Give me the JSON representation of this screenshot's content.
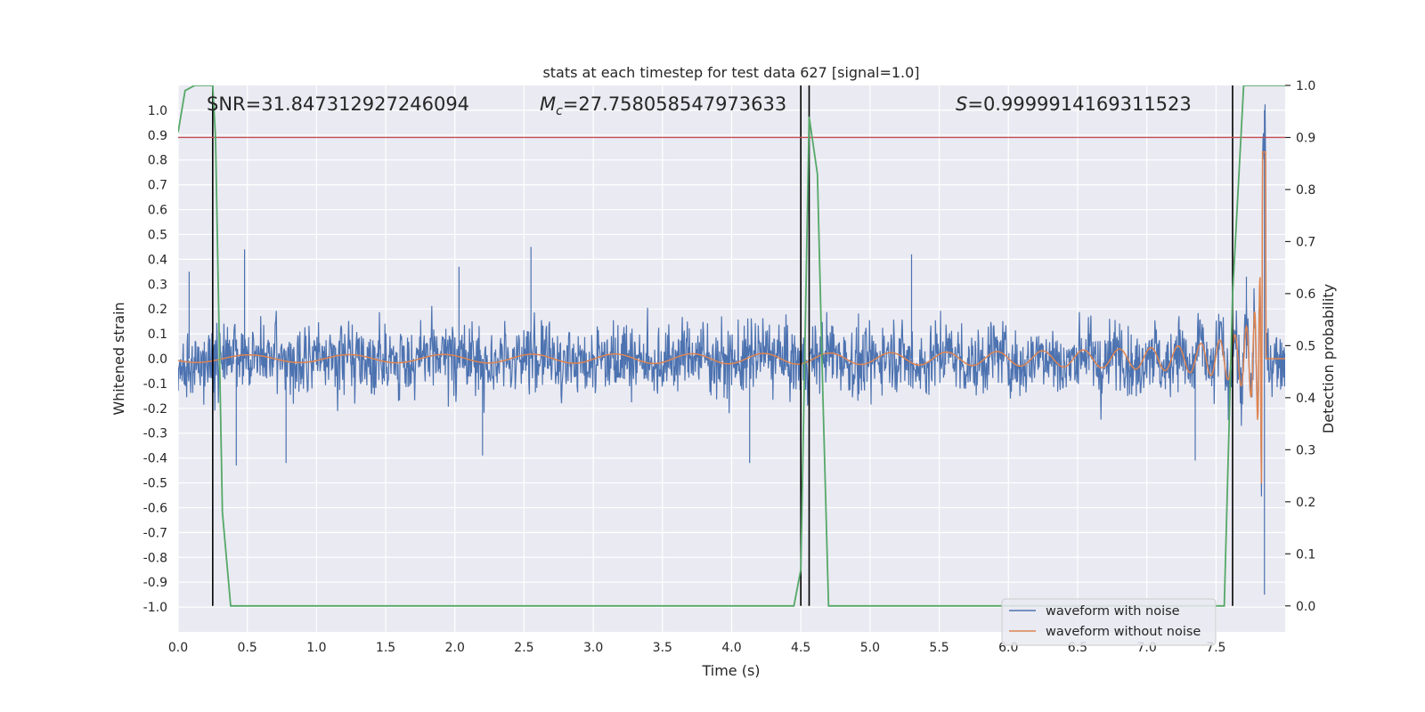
{
  "chart_data": {
    "type": "line",
    "title": "stats at each timestep for test data 627 [signal=1.0]",
    "xlabel": "Time (s)",
    "ylabel": "Whitened strain",
    "y2label": "Detection probability",
    "xlim": [
      0.0,
      8.0
    ],
    "ylim": [
      -1.1,
      1.1
    ],
    "y2lim": [
      -0.05,
      1.0
    ],
    "xticks": [
      "0.0",
      "0.5",
      "1.0",
      "1.5",
      "2.0",
      "2.5",
      "3.0",
      "3.5",
      "4.0",
      "4.5",
      "5.0",
      "5.5",
      "6.0",
      "6.5",
      "7.0",
      "7.5"
    ],
    "yticks": [
      "1.0",
      "0.9",
      "0.8",
      "0.7",
      "0.6",
      "0.5",
      "0.4",
      "0.3",
      "0.2",
      "0.1",
      "0.0",
      "-0.1",
      "-0.2",
      "-0.3",
      "-0.4",
      "-0.5",
      "-0.6",
      "-0.7",
      "-0.8",
      "-0.9",
      "-1.0"
    ],
    "y2ticks": [
      "1.0",
      "0.9",
      "0.8",
      "0.7",
      "0.6",
      "0.5",
      "0.4",
      "0.3",
      "0.2",
      "0.1",
      "0.0"
    ],
    "grid": true,
    "legend_position": "bottom-right",
    "annotations": {
      "snr": "SNR=31.847312927246094",
      "mc": "=27.758058547973633",
      "mc_symbol": "M",
      "mc_sub": "c",
      "s": "=0.9999914169311523",
      "s_symbol": "S"
    },
    "threshold": {
      "value": 0.9,
      "axis": "y2",
      "color": "#c44e52"
    },
    "vlines": [
      0.25,
      4.5,
      4.56,
      7.62
    ],
    "series": [
      {
        "name": "waveform with noise",
        "axis": "y",
        "color": "#4c72b0",
        "description_values": {
          "noise_amplitude_std": 0.1,
          "spikes": [
            {
              "x": 0.08,
              "y": 0.35
            },
            {
              "x": 0.48,
              "y": 0.44
            },
            {
              "x": 0.42,
              "y": -0.43
            },
            {
              "x": 0.78,
              "y": -0.42
            },
            {
              "x": 2.03,
              "y": 0.37
            },
            {
              "x": 2.55,
              "y": 0.45
            },
            {
              "x": 2.2,
              "y": -0.39
            },
            {
              "x": 4.13,
              "y": -0.42
            },
            {
              "x": 5.3,
              "y": 0.42
            },
            {
              "x": 7.35,
              "y": -0.41
            },
            {
              "x": 7.72,
              "y": 0.33
            }
          ],
          "peak_max": {
            "x": 7.85,
            "y": 1.0
          },
          "peak_min": {
            "x": 7.85,
            "y": -0.95
          }
        }
      },
      {
        "name": "waveform without noise",
        "axis": "y",
        "color": "#dd8452",
        "description_values": {
          "chirp_start_amplitude": 0.005,
          "chirp_peak_amplitude": 0.88,
          "merger_time": 7.84
        }
      },
      {
        "name": "",
        "axis": "y2",
        "color": "#55a868",
        "x": [
          0.0,
          0.05,
          0.12,
          0.25,
          0.27,
          0.32,
          0.38,
          4.45,
          4.5,
          4.56,
          4.62,
          4.66,
          4.7,
          7.56,
          7.62,
          7.7,
          8.0
        ],
        "values": [
          0.91,
          0.99,
          1.0,
          1.0,
          0.9,
          0.18,
          0.0,
          0.0,
          0.07,
          0.94,
          0.83,
          0.4,
          0.0,
          0.0,
          0.6,
          1.0,
          1.0
        ]
      }
    ]
  }
}
